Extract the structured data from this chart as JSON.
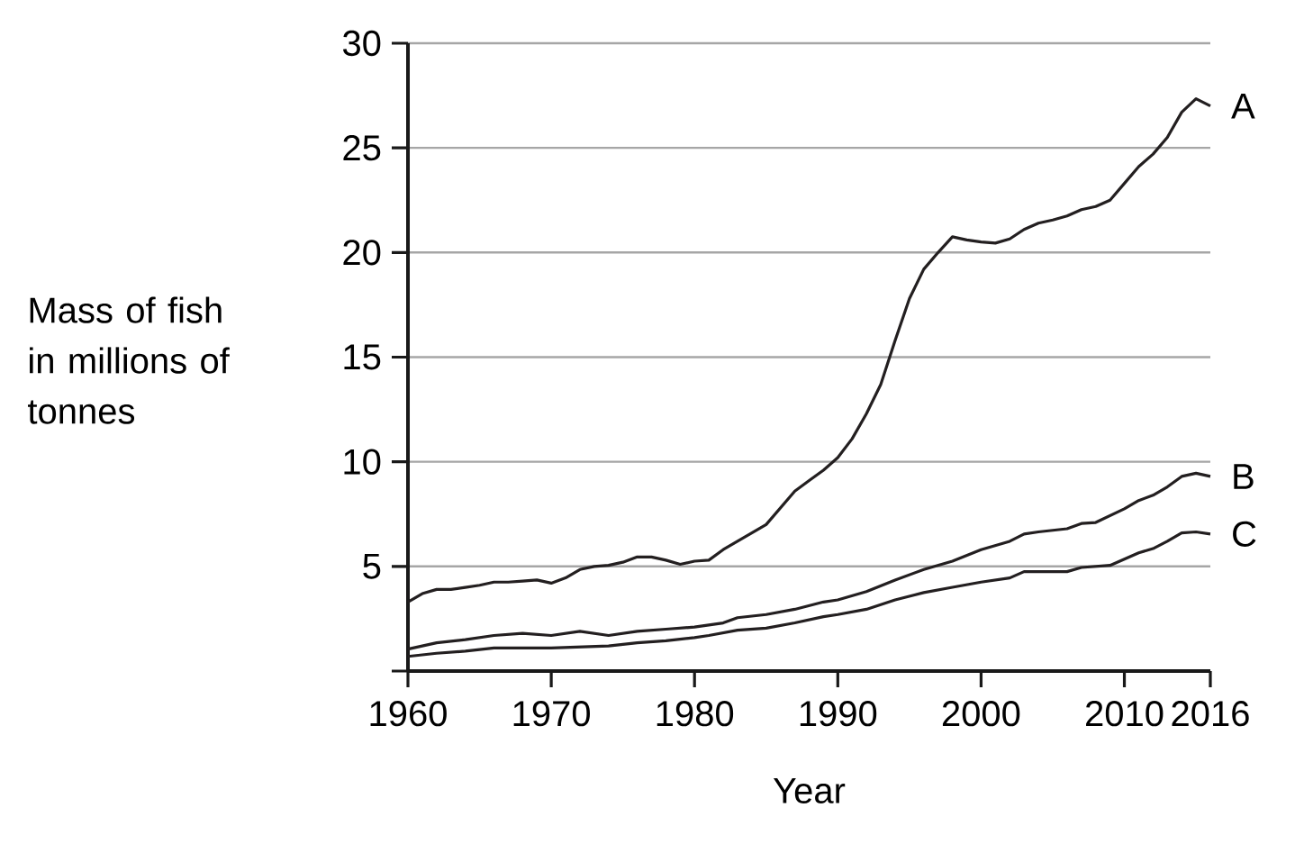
{
  "chart_data": {
    "type": "line",
    "xlabel": "Year",
    "ylabel": "Mass of fish in millions of tonnes",
    "xlim": [
      1960,
      2016
    ],
    "ylim": [
      0,
      30
    ],
    "xticks": [
      1960,
      1970,
      1980,
      1990,
      2000,
      2010,
      2016
    ],
    "yticks": [
      {
        "value": 0,
        "label": null
      },
      5,
      10,
      15,
      20,
      25,
      30
    ],
    "grid": "y",
    "series": [
      {
        "name": "A",
        "color": "#231f20",
        "x": [
          1960,
          1961,
          1962,
          1963,
          1964,
          1965,
          1966,
          1967,
          1968,
          1969,
          1970,
          1971,
          1972,
          1973,
          1974,
          1975,
          1976,
          1977,
          1978,
          1979,
          1980,
          1981,
          1982,
          1983,
          1984,
          1985,
          1986,
          1987,
          1988,
          1989,
          1990,
          1991,
          1992,
          1993,
          1994,
          1995,
          1996,
          1997,
          1998,
          1999,
          2000,
          2001,
          2002,
          2003,
          2004,
          2005,
          2006,
          2007,
          2008,
          2009,
          2010,
          2011,
          2012,
          2013,
          2014,
          2015,
          2016
        ],
        "values": [
          3.3,
          3.7,
          3.9,
          3.9,
          4.0,
          4.1,
          4.25,
          4.25,
          4.3,
          4.35,
          4.2,
          4.45,
          4.85,
          5.0,
          5.05,
          5.2,
          5.45,
          5.45,
          5.3,
          5.1,
          5.25,
          5.3,
          5.8,
          6.2,
          6.6,
          7.0,
          7.8,
          8.6,
          9.1,
          9.6,
          10.2,
          11.1,
          12.3,
          13.7,
          15.8,
          17.8,
          19.2,
          20.0,
          20.75,
          20.6,
          20.5,
          20.45,
          20.65,
          21.1,
          21.4,
          21.55,
          21.75,
          22.05,
          22.2,
          22.5,
          23.3,
          24.1,
          24.7,
          25.5,
          26.7,
          27.35,
          27.0
        ]
      },
      {
        "name": "B",
        "color": "#231f20",
        "x": [
          1960,
          1962,
          1964,
          1966,
          1968,
          1970,
          1972,
          1974,
          1976,
          1978,
          1980,
          1982,
          1983,
          1985,
          1987,
          1989,
          1990,
          1992,
          1994,
          1996,
          1998,
          2000,
          2002,
          2003,
          2004,
          2006,
          2007,
          2008,
          2010,
          2011,
          2012,
          2013,
          2014,
          2015,
          2016
        ],
        "values": [
          1.05,
          1.35,
          1.5,
          1.7,
          1.8,
          1.7,
          1.9,
          1.7,
          1.9,
          2.0,
          2.1,
          2.3,
          2.55,
          2.7,
          2.95,
          3.3,
          3.4,
          3.8,
          4.35,
          4.85,
          5.25,
          5.8,
          6.2,
          6.55,
          6.65,
          6.8,
          7.05,
          7.1,
          7.75,
          8.15,
          8.4,
          8.8,
          9.3,
          9.45,
          9.3
        ]
      },
      {
        "name": "C",
        "color": "#231f20",
        "x": [
          1960,
          1962,
          1964,
          1966,
          1970,
          1974,
          1976,
          1978,
          1980,
          1981,
          1983,
          1985,
          1987,
          1989,
          1990,
          1992,
          1994,
          1996,
          1998,
          2000,
          2002,
          2003,
          2004,
          2006,
          2007,
          2009,
          2010,
          2011,
          2012,
          2013,
          2014,
          2015,
          2016
        ],
        "values": [
          0.7,
          0.85,
          0.95,
          1.1,
          1.1,
          1.2,
          1.35,
          1.45,
          1.6,
          1.7,
          1.95,
          2.05,
          2.3,
          2.6,
          2.7,
          2.95,
          3.4,
          3.75,
          4.0,
          4.25,
          4.45,
          4.75,
          4.75,
          4.75,
          4.95,
          5.05,
          5.35,
          5.65,
          5.85,
          6.2,
          6.6,
          6.65,
          6.55
        ]
      }
    ]
  }
}
